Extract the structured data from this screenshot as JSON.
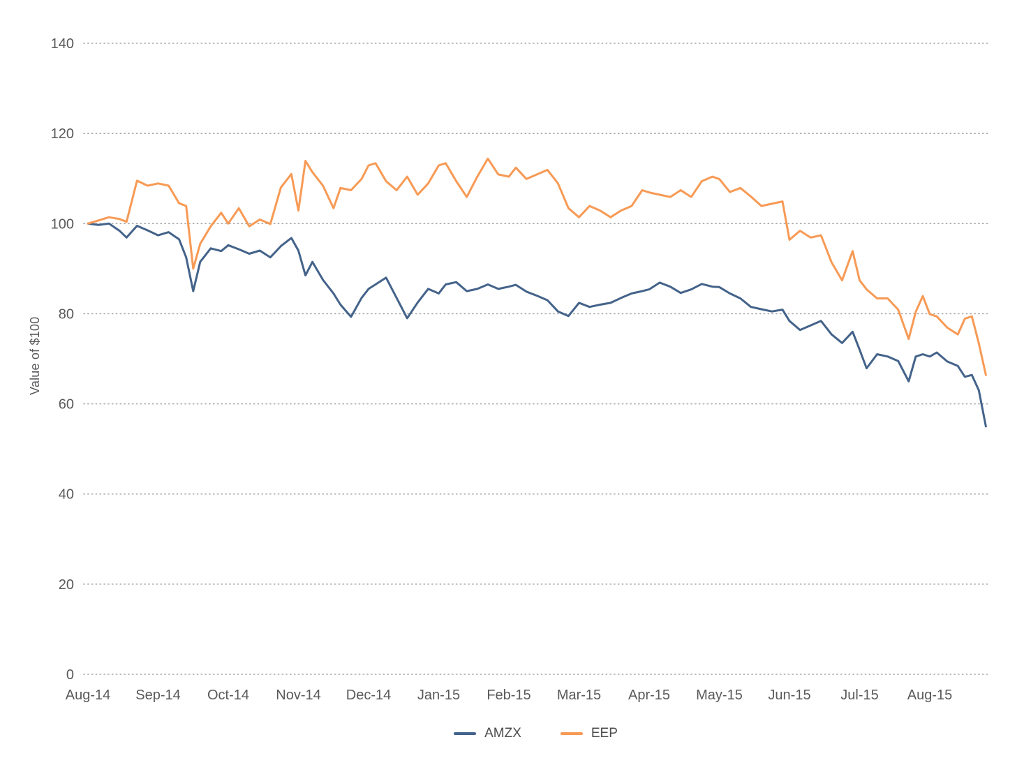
{
  "chart_data": {
    "type": "line",
    "title": "",
    "xlabel": "",
    "ylabel": "Value of $100",
    "ylim": [
      0,
      140
    ],
    "y_ticks": [
      0,
      20,
      40,
      60,
      80,
      100,
      120,
      140
    ],
    "x_tick_labels": [
      "Aug-14",
      "Sep-14",
      "Oct-14",
      "Nov-14",
      "Dec-14",
      "Jan-15",
      "Feb-15",
      "Mar-15",
      "Apr-15",
      "May-15",
      "Jun-15",
      "Jul-15",
      "Aug-15"
    ],
    "grid": "dotted-horizontal",
    "legend_position": "bottom-center",
    "x_months_since_aug14": [
      0,
      0.15,
      0.3,
      0.45,
      0.55,
      0.7,
      0.85,
      1.0,
      1.15,
      1.3,
      1.4,
      1.5,
      1.6,
      1.75,
      1.9,
      2.0,
      2.15,
      2.3,
      2.45,
      2.6,
      2.75,
      2.9,
      3.0,
      3.1,
      3.2,
      3.35,
      3.5,
      3.6,
      3.75,
      3.9,
      4.0,
      4.1,
      4.25,
      4.4,
      4.55,
      4.7,
      4.85,
      5.0,
      5.1,
      5.25,
      5.4,
      5.55,
      5.7,
      5.85,
      6.0,
      6.1,
      6.25,
      6.4,
      6.55,
      6.7,
      6.85,
      7.0,
      7.15,
      7.3,
      7.45,
      7.6,
      7.75,
      7.9,
      8.0,
      8.15,
      8.3,
      8.45,
      8.6,
      8.75,
      8.9,
      9.0,
      9.15,
      9.3,
      9.45,
      9.6,
      9.75,
      9.9,
      10.0,
      10.15,
      10.3,
      10.45,
      10.6,
      10.75,
      10.9,
      11.0,
      11.1,
      11.25,
      11.4,
      11.55,
      11.7,
      11.8,
      11.9,
      12.0,
      12.1,
      12.25,
      12.4,
      12.5,
      12.6,
      12.7,
      12.8
    ],
    "series": [
      {
        "name": "AMZX",
        "color": "#44638a",
        "values": [
          100,
          99.7,
          100,
          98.4,
          96.9,
          99.5,
          98.5,
          97.4,
          98.1,
          96.5,
          92.5,
          85.0,
          91.5,
          94.5,
          93.9,
          95.2,
          94.3,
          93.3,
          94.0,
          92.5,
          95.0,
          96.8,
          94.0,
          88.5,
          91.5,
          87.5,
          84.5,
          82.0,
          79.3,
          83.5,
          85.5,
          86.5,
          88.0,
          83.5,
          79.0,
          82.5,
          85.5,
          84.5,
          86.5,
          87.0,
          85.0,
          85.5,
          86.5,
          85.5,
          86.0,
          86.4,
          84.9,
          84.0,
          83.0,
          80.5,
          79.5,
          82.4,
          81.5,
          82.0,
          82.4,
          83.5,
          84.5,
          85.0,
          85.4,
          86.9,
          86.0,
          84.6,
          85.4,
          86.6,
          86.0,
          85.9,
          84.5,
          83.4,
          81.5,
          81.0,
          80.5,
          80.9,
          78.4,
          76.4,
          77.4,
          78.4,
          75.4,
          73.5,
          76.0,
          72.0,
          67.9,
          71.0,
          70.5,
          69.5,
          65.0,
          70.5,
          71.0,
          70.5,
          71.4,
          69.4,
          68.4,
          66.0,
          66.4,
          63.0,
          55.0
        ]
      },
      {
        "name": "EEP",
        "color": "#f79a55",
        "values": [
          100,
          100.7,
          101.4,
          101.0,
          100.4,
          109.5,
          108.4,
          108.9,
          108.4,
          104.5,
          103.9,
          90.0,
          95.5,
          99.4,
          102.4,
          100.0,
          103.4,
          99.4,
          100.9,
          99.9,
          108.0,
          111.0,
          102.9,
          113.9,
          111.4,
          108.4,
          103.4,
          107.9,
          107.4,
          109.9,
          112.9,
          113.4,
          109.4,
          107.4,
          110.4,
          106.4,
          108.9,
          112.9,
          113.4,
          109.4,
          105.9,
          110.4,
          114.4,
          110.9,
          110.4,
          112.4,
          109.9,
          110.9,
          111.9,
          108.9,
          103.4,
          101.4,
          103.9,
          102.9,
          101.4,
          102.9,
          103.9,
          107.4,
          106.9,
          106.4,
          105.9,
          107.4,
          105.9,
          109.4,
          110.4,
          109.9,
          107.0,
          107.9,
          106.0,
          103.9,
          104.4,
          104.9,
          96.4,
          98.4,
          96.9,
          97.4,
          91.4,
          87.4,
          93.9,
          87.4,
          85.4,
          83.4,
          83.4,
          80.9,
          74.4,
          80.4,
          83.9,
          79.9,
          79.4,
          76.9,
          75.4,
          78.9,
          79.4,
          73.4,
          66.4
        ]
      }
    ]
  },
  "legend": {
    "items": [
      {
        "label": "AMZX"
      },
      {
        "label": "EEP"
      }
    ]
  },
  "style": {
    "gridline_color": "#a6a6a6",
    "axis_text_color": "#58595b",
    "background": "#ffffff"
  }
}
